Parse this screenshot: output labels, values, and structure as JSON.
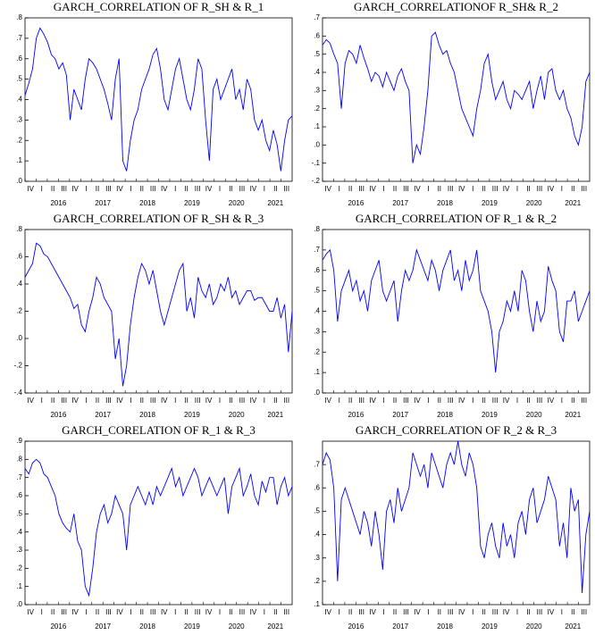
{
  "chart_data": [
    {
      "type": "line",
      "title": "GARCH_CORRELATION OF R_SH & R_1",
      "color": "#0000ff",
      "quarters": [
        "IV",
        "I",
        "II",
        "III",
        "IV",
        "I",
        "II",
        "III",
        "IV",
        "I",
        "II",
        "III",
        "IV",
        "I",
        "II",
        "III",
        "IV",
        "I",
        "II",
        "III",
        "IV",
        "I",
        "II",
        "III"
      ],
      "years": [
        "2016",
        "2017",
        "2018",
        "2019",
        "2020",
        "2021"
      ],
      "ylim": [
        0,
        0.8
      ],
      "yticks": [
        {
          "value": 0,
          "label": ".0"
        },
        {
          "value": 0.1,
          "label": ".1"
        },
        {
          "value": 0.2,
          "label": ".2"
        },
        {
          "value": 0.3,
          "label": ".3"
        },
        {
          "value": 0.4,
          "label": ".4"
        },
        {
          "value": 0.5,
          "label": ".5"
        },
        {
          "value": 0.6,
          "label": ".6"
        },
        {
          "value": 0.7,
          "label": ".7"
        },
        {
          "value": 0.8,
          "label": ".8"
        }
      ],
      "values": [
        0.42,
        0.48,
        0.55,
        0.7,
        0.75,
        0.72,
        0.68,
        0.62,
        0.6,
        0.55,
        0.58,
        0.52,
        0.3,
        0.45,
        0.4,
        0.35,
        0.5,
        0.6,
        0.58,
        0.55,
        0.5,
        0.45,
        0.38,
        0.3,
        0.5,
        0.6,
        0.1,
        0.05,
        0.2,
        0.3,
        0.35,
        0.45,
        0.5,
        0.55,
        0.62,
        0.65,
        0.55,
        0.4,
        0.35,
        0.45,
        0.55,
        0.6,
        0.5,
        0.4,
        0.35,
        0.45,
        0.6,
        0.55,
        0.3,
        0.1,
        0.45,
        0.5,
        0.4,
        0.45,
        0.5,
        0.55,
        0.4,
        0.45,
        0.35,
        0.5,
        0.45,
        0.3,
        0.25,
        0.3,
        0.2,
        0.15,
        0.25,
        0.18,
        0.05,
        0.2,
        0.3,
        0.32
      ]
    },
    {
      "type": "line",
      "title": "GARCH_CORRELATIONOF R_SH& R_2",
      "color": "#0000ff",
      "quarters": [
        "IV",
        "I",
        "II",
        "III",
        "IV",
        "I",
        "II",
        "III",
        "IV",
        "I",
        "II",
        "III",
        "IV",
        "I",
        "II",
        "III",
        "IV",
        "I",
        "II",
        "III",
        "IV",
        "I",
        "II",
        "III"
      ],
      "years": [
        "2016",
        "2017",
        "2018",
        "2019",
        "2020",
        "2021"
      ],
      "ylim": [
        -0.2,
        0.7
      ],
      "yticks": [
        {
          "value": -0.2,
          "label": "-.2"
        },
        {
          "value": -0.1,
          "label": "-.1"
        },
        {
          "value": 0,
          "label": ".0"
        },
        {
          "value": 0.1,
          "label": ".1"
        },
        {
          "value": 0.2,
          "label": ".2"
        },
        {
          "value": 0.3,
          "label": ".3"
        },
        {
          "value": 0.4,
          "label": ".4"
        },
        {
          "value": 0.5,
          "label": ".5"
        },
        {
          "value": 0.6,
          "label": ".6"
        },
        {
          "value": 0.7,
          "label": ".7"
        }
      ],
      "values": [
        0.55,
        0.58,
        0.56,
        0.5,
        0.45,
        0.2,
        0.45,
        0.52,
        0.5,
        0.45,
        0.55,
        0.48,
        0.42,
        0.35,
        0.4,
        0.38,
        0.32,
        0.4,
        0.35,
        0.3,
        0.38,
        0.42,
        0.35,
        0.3,
        -0.1,
        0.0,
        -0.05,
        0.1,
        0.3,
        0.6,
        0.62,
        0.55,
        0.5,
        0.52,
        0.45,
        0.4,
        0.3,
        0.2,
        0.15,
        0.1,
        0.05,
        0.2,
        0.3,
        0.45,
        0.5,
        0.35,
        0.25,
        0.3,
        0.35,
        0.25,
        0.2,
        0.3,
        0.28,
        0.25,
        0.3,
        0.35,
        0.2,
        0.3,
        0.38,
        0.25,
        0.4,
        0.42,
        0.3,
        0.25,
        0.3,
        0.2,
        0.15,
        0.05,
        0.0,
        0.1,
        0.35,
        0.4
      ]
    },
    {
      "type": "line",
      "title": "GARCH_CORRELATION OF R_SH & R_3",
      "color": "#0000ff",
      "quarters": [
        "IV",
        "I",
        "II",
        "III",
        "IV",
        "I",
        "II",
        "III",
        "IV",
        "I",
        "II",
        "III",
        "IV",
        "I",
        "II",
        "III",
        "IV",
        "I",
        "II",
        "III",
        "IV",
        "I",
        "II",
        "III"
      ],
      "years": [
        "2016",
        "2017",
        "2018",
        "2019",
        "2020",
        "2021"
      ],
      "ylim": [
        -0.4,
        0.8
      ],
      "yticks": [
        {
          "value": -0.4,
          "label": "-.4"
        },
        {
          "value": -0.2,
          "label": "-.2"
        },
        {
          "value": 0,
          "label": ".0"
        },
        {
          "value": 0.2,
          "label": ".2"
        },
        {
          "value": 0.4,
          "label": ".4"
        },
        {
          "value": 0.6,
          "label": ".6"
        },
        {
          "value": 0.8,
          "label": ".8"
        }
      ],
      "values": [
        0.45,
        0.5,
        0.55,
        0.7,
        0.68,
        0.62,
        0.6,
        0.55,
        0.5,
        0.45,
        0.4,
        0.35,
        0.3,
        0.22,
        0.25,
        0.1,
        0.05,
        0.2,
        0.3,
        0.45,
        0.4,
        0.3,
        0.25,
        0.2,
        -0.15,
        0.0,
        -0.35,
        -0.2,
        0.1,
        0.3,
        0.45,
        0.55,
        0.5,
        0.4,
        0.5,
        0.35,
        0.2,
        0.1,
        0.2,
        0.3,
        0.4,
        0.5,
        0.55,
        0.2,
        0.3,
        0.15,
        0.45,
        0.35,
        0.3,
        0.4,
        0.25,
        0.3,
        0.4,
        0.35,
        0.45,
        0.3,
        0.35,
        0.25,
        0.3,
        0.35,
        0.35,
        0.28,
        0.3,
        0.3,
        0.25,
        0.2,
        0.2,
        0.3,
        0.15,
        0.25,
        -0.1,
        0.2
      ]
    },
    {
      "type": "line",
      "title": "GARCH_CORRELATION OF R_1 & R_2",
      "color": "#0000ff",
      "quarters": [
        "IV",
        "I",
        "II",
        "III",
        "IV",
        "I",
        "II",
        "III",
        "IV",
        "I",
        "II",
        "III",
        "IV",
        "I",
        "II",
        "III",
        "IV",
        "I",
        "II",
        "III",
        "IV",
        "I",
        "II",
        "III"
      ],
      "years": [
        "2016",
        "2017",
        "2018",
        "2019",
        "2020",
        "2021"
      ],
      "ylim": [
        0,
        0.8
      ],
      "yticks": [
        {
          "value": 0,
          "label": ".0"
        },
        {
          "value": 0.1,
          "label": ".1"
        },
        {
          "value": 0.2,
          "label": ".2"
        },
        {
          "value": 0.3,
          "label": ".3"
        },
        {
          "value": 0.4,
          "label": ".4"
        },
        {
          "value": 0.5,
          "label": ".5"
        },
        {
          "value": 0.6,
          "label": ".6"
        },
        {
          "value": 0.7,
          "label": ".7"
        },
        {
          "value": 0.8,
          "label": ".8"
        }
      ],
      "values": [
        0.65,
        0.68,
        0.7,
        0.6,
        0.35,
        0.5,
        0.55,
        0.6,
        0.5,
        0.55,
        0.45,
        0.5,
        0.4,
        0.55,
        0.6,
        0.65,
        0.5,
        0.45,
        0.5,
        0.55,
        0.35,
        0.5,
        0.6,
        0.55,
        0.6,
        0.7,
        0.65,
        0.6,
        0.55,
        0.65,
        0.6,
        0.5,
        0.6,
        0.65,
        0.7,
        0.55,
        0.6,
        0.5,
        0.65,
        0.55,
        0.6,
        0.7,
        0.5,
        0.45,
        0.4,
        0.3,
        0.1,
        0.3,
        0.35,
        0.45,
        0.4,
        0.5,
        0.4,
        0.6,
        0.55,
        0.4,
        0.3,
        0.45,
        0.35,
        0.4,
        0.62,
        0.55,
        0.5,
        0.3,
        0.25,
        0.45,
        0.45,
        0.5,
        0.35,
        0.4,
        0.45,
        0.5
      ]
    },
    {
      "type": "line",
      "title": "GARCH_CORELATION OF R_1 & R_3",
      "color": "#0000ff",
      "quarters": [
        "IV",
        "I",
        "II",
        "III",
        "IV",
        "I",
        "II",
        "III",
        "IV",
        "I",
        "II",
        "III",
        "IV",
        "I",
        "II",
        "III",
        "IV",
        "I",
        "II",
        "III",
        "IV",
        "I",
        "II",
        "III"
      ],
      "years": [
        "2016",
        "2017",
        "2018",
        "2019",
        "2020",
        "2021"
      ],
      "ylim": [
        0,
        0.9
      ],
      "yticks": [
        {
          "value": 0,
          "label": ".0"
        },
        {
          "value": 0.1,
          "label": ".1"
        },
        {
          "value": 0.2,
          "label": ".2"
        },
        {
          "value": 0.3,
          "label": ".3"
        },
        {
          "value": 0.4,
          "label": ".4"
        },
        {
          "value": 0.5,
          "label": ".5"
        },
        {
          "value": 0.6,
          "label": ".6"
        },
        {
          "value": 0.7,
          "label": ".7"
        },
        {
          "value": 0.8,
          "label": ".8"
        },
        {
          "value": 0.9,
          "label": ".9"
        }
      ],
      "values": [
        0.75,
        0.72,
        0.78,
        0.8,
        0.78,
        0.72,
        0.7,
        0.65,
        0.6,
        0.5,
        0.45,
        0.42,
        0.4,
        0.5,
        0.35,
        0.3,
        0.1,
        0.05,
        0.2,
        0.4,
        0.5,
        0.55,
        0.45,
        0.5,
        0.6,
        0.55,
        0.5,
        0.3,
        0.55,
        0.6,
        0.65,
        0.6,
        0.55,
        0.62,
        0.55,
        0.65,
        0.6,
        0.65,
        0.7,
        0.75,
        0.65,
        0.7,
        0.6,
        0.65,
        0.7,
        0.75,
        0.7,
        0.6,
        0.65,
        0.7,
        0.65,
        0.6,
        0.65,
        0.7,
        0.5,
        0.65,
        0.7,
        0.75,
        0.6,
        0.65,
        0.72,
        0.6,
        0.55,
        0.68,
        0.62,
        0.7,
        0.7,
        0.55,
        0.65,
        0.7,
        0.6,
        0.65
      ]
    },
    {
      "type": "line",
      "title": "GARCH_CORRELATION OF R_2 & R_3",
      "color": "#0000ff",
      "quarters": [
        "IV",
        "I",
        "II",
        "III",
        "IV",
        "I",
        "II",
        "III",
        "IV",
        "I",
        "II",
        "III",
        "IV",
        "I",
        "II",
        "III",
        "IV",
        "I",
        "II",
        "III",
        "IV",
        "I",
        "II",
        "III"
      ],
      "years": [
        "2016",
        "2017",
        "2018",
        "2019",
        "2020",
        "2021"
      ],
      "ylim": [
        0.1,
        0.8
      ],
      "yticks": [
        {
          "value": 0.1,
          "label": ".1"
        },
        {
          "value": 0.2,
          "label": ".2"
        },
        {
          "value": 0.3,
          "label": ".3"
        },
        {
          "value": 0.4,
          "label": ".4"
        },
        {
          "value": 0.5,
          "label": ".5"
        },
        {
          "value": 0.6,
          "label": ".6"
        },
        {
          "value": 0.7,
          "label": ".7"
        }
      ],
      "values": [
        0.7,
        0.75,
        0.72,
        0.6,
        0.2,
        0.55,
        0.6,
        0.55,
        0.5,
        0.45,
        0.4,
        0.5,
        0.45,
        0.35,
        0.5,
        0.4,
        0.25,
        0.5,
        0.55,
        0.45,
        0.6,
        0.5,
        0.55,
        0.6,
        0.75,
        0.7,
        0.65,
        0.7,
        0.6,
        0.75,
        0.7,
        0.65,
        0.6,
        0.7,
        0.75,
        0.7,
        0.8,
        0.7,
        0.65,
        0.75,
        0.7,
        0.6,
        0.35,
        0.3,
        0.4,
        0.45,
        0.35,
        0.3,
        0.45,
        0.35,
        0.4,
        0.3,
        0.45,
        0.5,
        0.4,
        0.55,
        0.6,
        0.45,
        0.5,
        0.55,
        0.65,
        0.6,
        0.55,
        0.35,
        0.45,
        0.3,
        0.6,
        0.5,
        0.55,
        0.15,
        0.4,
        0.5
      ]
    }
  ]
}
